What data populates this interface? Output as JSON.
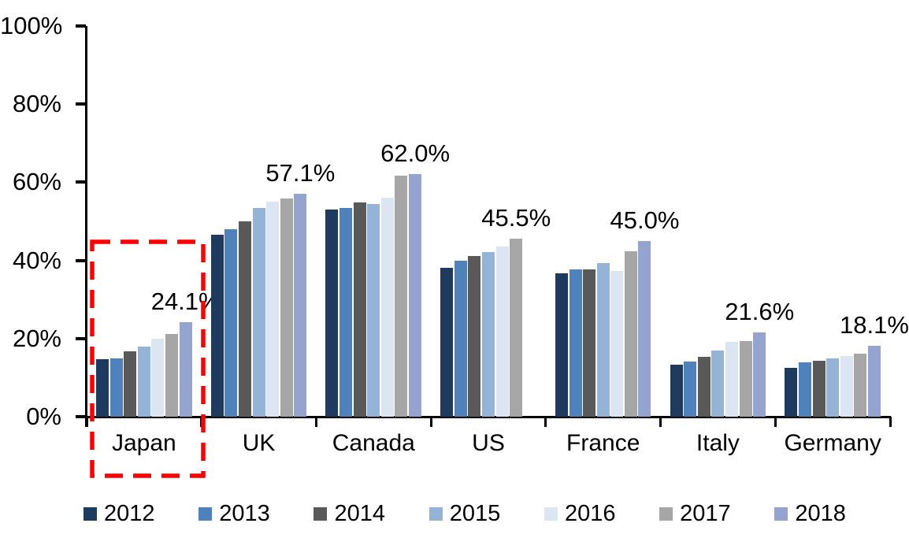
{
  "chart_data": {
    "type": "bar",
    "title": "",
    "xlabel": "",
    "ylabel": "",
    "categories": [
      "Japan",
      "UK",
      "Canada",
      "US",
      "France",
      "Italy",
      "Germany"
    ],
    "series": [
      {
        "name": "2012",
        "color": "#1F3A5F",
        "values": [
          14.8,
          46.5,
          53.0,
          38.2,
          36.6,
          13.4,
          12.6
        ]
      },
      {
        "name": "2013",
        "color": "#4F81BD",
        "values": [
          15.0,
          47.9,
          53.5,
          40.0,
          37.8,
          14.2,
          14.0
        ]
      },
      {
        "name": "2014",
        "color": "#595959",
        "values": [
          16.8,
          50.1,
          54.9,
          41.2,
          37.7,
          15.4,
          14.4
        ]
      },
      {
        "name": "2015",
        "color": "#95B3D7",
        "values": [
          18.0,
          53.4,
          54.5,
          42.1,
          39.3,
          16.9,
          15.0
        ]
      },
      {
        "name": "2016",
        "color": "#DCE6F2",
        "values": [
          20.0,
          55.0,
          56.1,
          43.6,
          37.3,
          19.1,
          15.5
        ]
      },
      {
        "name": "2017",
        "color": "#A6A6A6",
        "values": [
          21.1,
          55.9,
          61.6,
          45.5,
          42.4,
          19.3,
          16.1
        ]
      },
      {
        "name": "2018",
        "color": "#95A4CE",
        "values": [
          24.1,
          57.1,
          62.0,
          null,
          45.0,
          21.6,
          18.1
        ]
      }
    ],
    "group_labels": [
      "24.1%",
      "57.1%",
      "62.0%",
      "45.5%",
      "45.0%",
      "21.6%",
      "18.1%"
    ],
    "y_ticks": [
      "0%",
      "20%",
      "40%",
      "60%",
      "80%",
      "100%"
    ],
    "ylim": [
      0,
      100
    ],
    "grid": false,
    "legend_position": "bottom",
    "legend_entries": [
      "2012",
      "2013",
      "2014",
      "2015",
      "2016",
      "2017",
      "2018"
    ],
    "highlight": {
      "category": "Japan",
      "style": "dashed-box",
      "color": "#FE0000"
    }
  }
}
